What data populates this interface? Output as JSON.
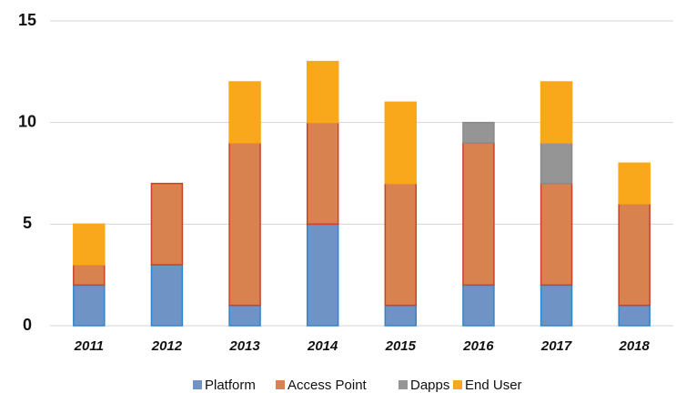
{
  "chart_data": {
    "type": "stacked_bar",
    "categories": [
      "2011",
      "2012",
      "2013",
      "2014",
      "2015",
      "2016",
      "2017",
      "2018"
    ],
    "series": [
      {
        "name": "Platform",
        "color": "#6f93c4",
        "edge": "#2f86cc",
        "values": [
          2,
          3,
          1,
          5,
          1,
          2,
          2,
          1
        ]
      },
      {
        "name": "Access Point",
        "color": "#d8824f",
        "edge": "#c9432a",
        "values": [
          1,
          4,
          8,
          5,
          6,
          7,
          5,
          5
        ]
      },
      {
        "name": "Dapps",
        "color": "#959595",
        "edge": "#8a8a8a",
        "values": [
          0,
          0,
          0,
          0,
          0,
          1,
          2,
          0
        ]
      },
      {
        "name": "End User",
        "color": "#f9a81b",
        "edge": "#f9a81b",
        "values": [
          2,
          0,
          3,
          3,
          4,
          0,
          3,
          2
        ]
      }
    ],
    "ylim": [
      0,
      15
    ],
    "yticks": [
      0,
      5,
      10,
      15
    ],
    "grid": true,
    "legend": "bottom"
  }
}
